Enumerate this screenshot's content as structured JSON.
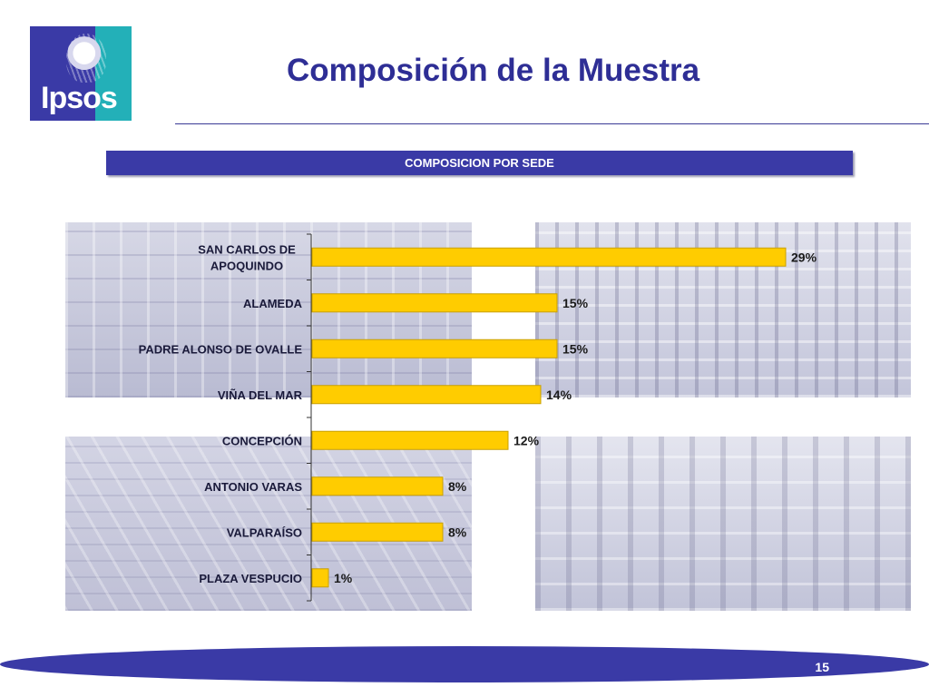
{
  "brand": {
    "logo_text": "Ipsos",
    "colors": {
      "primary": "#3a3aa6",
      "teal": "#23b0b8",
      "bar": "#ffcc00",
      "title": "#2e2e95"
    }
  },
  "header": {
    "title": "Composición de la Muestra"
  },
  "section": {
    "label": "COMPOSICION POR SEDE"
  },
  "chart_data": {
    "type": "bar",
    "orientation": "horizontal",
    "title": "COMPOSICION POR SEDE",
    "xlabel": "",
    "ylabel": "",
    "grid": false,
    "xlim": [
      0,
      29
    ],
    "categories": [
      [
        "SAN CARLOS DE",
        "APOQUINDO"
      ],
      [
        "ALAMEDA"
      ],
      [
        "PADRE ALONSO DE OVALLE"
      ],
      [
        "VIÑA DEL MAR"
      ],
      [
        "CONCEPCIÓN"
      ],
      [
        "ANTONIO VARAS"
      ],
      [
        "VALPARAÍSO"
      ],
      [
        "PLAZA VESPUCIO"
      ]
    ],
    "values": [
      29,
      15,
      15,
      14,
      12,
      8,
      8,
      1
    ],
    "data_labels": [
      "29%",
      "15%",
      "15%",
      "14%",
      "12%",
      "8%",
      "8%",
      "1%"
    ]
  },
  "footer": {
    "page_number": "15"
  }
}
